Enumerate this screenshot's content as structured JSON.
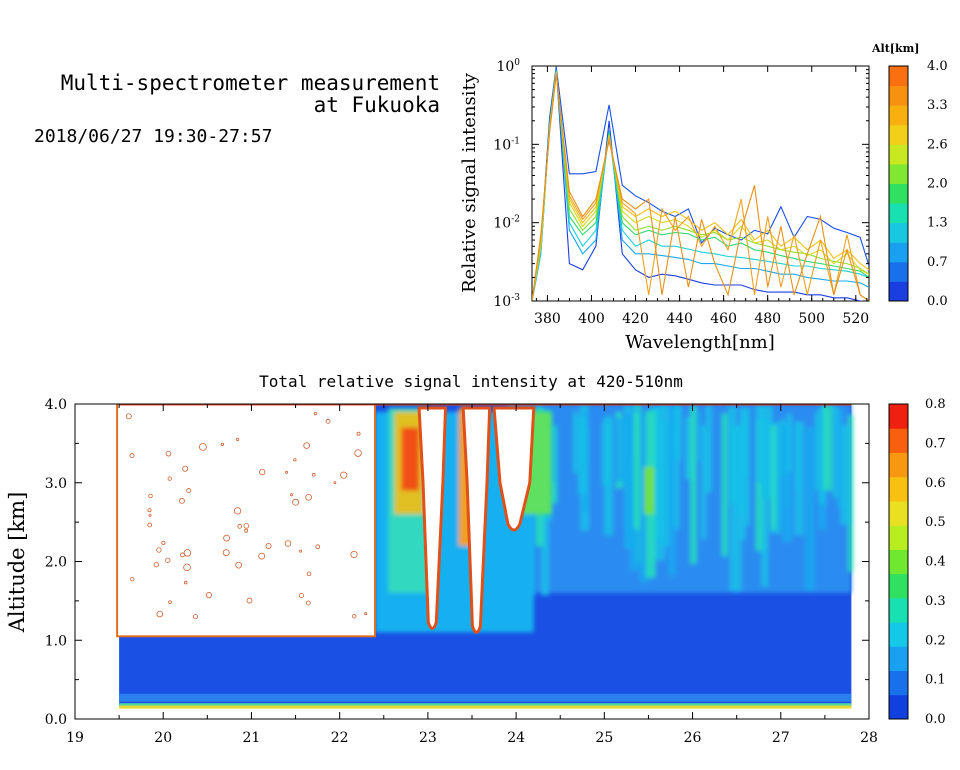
{
  "header": {
    "title_line1": "Multi-spectrometer measurement",
    "title_line2": "at Fukuoka",
    "datetime": "2018/06/27 19:30-27:57"
  },
  "colors": {
    "colorbar": [
      "#1040e0",
      "#1870ea",
      "#1aa0f0",
      "#14c8e8",
      "#18e0b0",
      "#30e060",
      "#70e830",
      "#b8ee20",
      "#e8e020",
      "#f8c010",
      "#f89810",
      "#f86010",
      "#f02010"
    ]
  },
  "chart_data": [
    {
      "type": "line",
      "xlabel": "Wavelength[nm]",
      "ylabel": "Relative signal intensity",
      "xlim": [
        373,
        526
      ],
      "ylim_log10": [
        -3,
        0
      ],
      "yscale": "log",
      "x_ticks": [
        380,
        400,
        420,
        440,
        460,
        480,
        500,
        520
      ],
      "y_ticks": [
        {
          "base": "10",
          "exp": "-3"
        },
        {
          "base": "10",
          "exp": "-2"
        },
        {
          "base": "10",
          "exp": "-1"
        },
        {
          "base": "10",
          "exp": "0"
        }
      ],
      "colorbar": {
        "label": "Alt[km]",
        "ticks": [
          "0.0",
          "0.7",
          "1.3",
          "2.0",
          "2.6",
          "3.3",
          "4.0"
        ]
      },
      "series": [
        {
          "alt": 0.15,
          "color": "#1a3ee0",
          "x": [
            373,
            377,
            381,
            384,
            390,
            396,
            402,
            408,
            414,
            420,
            426,
            432,
            438,
            444,
            450,
            456,
            462,
            468,
            474,
            480,
            486,
            492,
            498,
            504,
            510,
            516,
            522,
            526
          ],
          "y": [
            0.001,
            0.004,
            0.2,
            0.95,
            0.003,
            0.0025,
            0.005,
            0.2,
            0.004,
            0.0025,
            0.002,
            0.0022,
            0.0021,
            0.0019,
            0.0017,
            0.0016,
            0.0016,
            0.0016,
            0.0014,
            0.0013,
            0.0013,
            0.0013,
            0.0012,
            0.0012,
            0.0011,
            0.0011,
            0.001,
            0.001
          ]
        },
        {
          "alt": 0.25,
          "color": "#1850e6",
          "x": [
            373,
            377,
            381,
            384,
            390,
            396,
            402,
            408,
            414,
            420,
            426,
            432,
            438,
            444,
            450,
            456,
            462,
            468,
            474,
            480,
            486,
            492,
            498,
            504,
            510,
            516,
            522,
            526
          ],
          "y": [
            0.001,
            0.005,
            0.22,
            0.98,
            0.042,
            0.042,
            0.045,
            0.32,
            0.03,
            0.022,
            0.018,
            0.014,
            0.012,
            0.015,
            0.0055,
            0.0085,
            0.007,
            0.006,
            0.008,
            0.0072,
            0.016,
            0.0065,
            0.012,
            0.011,
            0.0085,
            0.0075,
            0.0065,
            0.0028
          ]
        },
        {
          "alt": 0.9,
          "color": "#18a8f0",
          "x": [
            373,
            377,
            381,
            384,
            390,
            396,
            402,
            408,
            414,
            420,
            426,
            432,
            438,
            444,
            450,
            456,
            462,
            468,
            474,
            480,
            486,
            492,
            498,
            504,
            510,
            516,
            522,
            526
          ],
          "y": [
            0.001,
            0.004,
            0.18,
            0.9,
            0.008,
            0.004,
            0.006,
            0.15,
            0.006,
            0.004,
            0.004,
            0.0038,
            0.0036,
            0.0034,
            0.003,
            0.003,
            0.0028,
            0.0026,
            0.0026,
            0.0024,
            0.0022,
            0.0022,
            0.002,
            0.0019,
            0.0018,
            0.0018,
            0.0017,
            0.0015
          ]
        },
        {
          "alt": 1.3,
          "color": "#18d0d8",
          "x": [
            373,
            377,
            381,
            384,
            390,
            396,
            402,
            408,
            414,
            420,
            426,
            432,
            438,
            444,
            450,
            456,
            462,
            468,
            474,
            480,
            486,
            492,
            498,
            504,
            510,
            516,
            522,
            526
          ],
          "y": [
            0.001,
            0.004,
            0.17,
            0.88,
            0.01,
            0.005,
            0.008,
            0.14,
            0.008,
            0.005,
            0.006,
            0.005,
            0.005,
            0.0046,
            0.0042,
            0.004,
            0.0037,
            0.0036,
            0.0034,
            0.0032,
            0.003,
            0.0028,
            0.0028,
            0.0026,
            0.0025,
            0.0024,
            0.0022,
            0.002
          ]
        },
        {
          "alt": 1.8,
          "color": "#30d870",
          "x": [
            373,
            377,
            381,
            384,
            390,
            396,
            402,
            408,
            414,
            420,
            426,
            432,
            438,
            444,
            450,
            456,
            462,
            468,
            474,
            480,
            486,
            492,
            498,
            504,
            510,
            516,
            522,
            526
          ],
          "y": [
            0.001,
            0.005,
            0.17,
            0.86,
            0.012,
            0.007,
            0.01,
            0.14,
            0.01,
            0.007,
            0.008,
            0.007,
            0.0075,
            0.0072,
            0.006,
            0.0065,
            0.005,
            0.0055,
            0.0045,
            0.0042,
            0.0038,
            0.0035,
            0.0032,
            0.003,
            0.0028,
            0.0026,
            0.0024,
            0.002
          ]
        },
        {
          "alt": 2.3,
          "color": "#90e030",
          "x": [
            373,
            377,
            381,
            384,
            390,
            396,
            402,
            408,
            414,
            420,
            426,
            432,
            438,
            444,
            450,
            456,
            462,
            468,
            474,
            480,
            486,
            492,
            498,
            504,
            510,
            516,
            522,
            526
          ],
          "y": [
            0.001,
            0.005,
            0.16,
            0.85,
            0.015,
            0.008,
            0.012,
            0.13,
            0.012,
            0.008,
            0.009,
            0.008,
            0.009,
            0.008,
            0.007,
            0.0075,
            0.006,
            0.0065,
            0.0055,
            0.005,
            0.0045,
            0.0042,
            0.004,
            0.0035,
            0.0032,
            0.003,
            0.0026,
            0.0022
          ]
        },
        {
          "alt": 2.8,
          "color": "#d8d820",
          "x": [
            373,
            377,
            381,
            384,
            390,
            396,
            402,
            408,
            414,
            420,
            426,
            432,
            438,
            444,
            450,
            456,
            462,
            468,
            474,
            480,
            486,
            492,
            498,
            504,
            510,
            516,
            522,
            526
          ],
          "y": [
            0.001,
            0.005,
            0.16,
            0.84,
            0.018,
            0.009,
            0.014,
            0.13,
            0.014,
            0.01,
            0.012,
            0.01,
            0.011,
            0.009,
            0.0065,
            0.008,
            0.006,
            0.009,
            0.0055,
            0.006,
            0.0045,
            0.005,
            0.0038,
            0.0045,
            0.003,
            0.004,
            0.0025,
            0.0022
          ]
        },
        {
          "alt": 3.1,
          "color": "#f0c010",
          "x": [
            373,
            377,
            381,
            384,
            390,
            396,
            402,
            408,
            414,
            420,
            426,
            432,
            438,
            444,
            450,
            456,
            462,
            468,
            474,
            480,
            486,
            492,
            498,
            504,
            510,
            516,
            522,
            526
          ],
          "y": [
            0.001,
            0.006,
            0.15,
            0.82,
            0.02,
            0.01,
            0.016,
            0.12,
            0.016,
            0.012,
            0.015,
            0.012,
            0.014,
            0.011,
            0.008,
            0.01,
            0.007,
            0.011,
            0.006,
            0.008,
            0.005,
            0.0065,
            0.0045,
            0.006,
            0.0035,
            0.0045,
            0.003,
            0.0025
          ]
        },
        {
          "alt": 3.6,
          "color": "#f0a020",
          "x": [
            373,
            377,
            381,
            384,
            390,
            396,
            402,
            408,
            414,
            420,
            426,
            432,
            438,
            444,
            450,
            456,
            462,
            468,
            474,
            480,
            486,
            492,
            498,
            504,
            510,
            516,
            522,
            526
          ],
          "y": [
            0.001,
            0.006,
            0.15,
            0.8,
            0.022,
            0.011,
            0.018,
            0.12,
            0.018,
            0.013,
            0.0012,
            0.015,
            0.008,
            0.012,
            0.005,
            0.009,
            0.0045,
            0.02,
            0.0012,
            0.012,
            0.0015,
            0.007,
            0.0012,
            0.006,
            0.0012,
            0.007,
            0.0012,
            0.001
          ]
        },
        {
          "alt": 3.9,
          "color": "#e89018",
          "x": [
            373,
            377,
            381,
            384,
            390,
            396,
            402,
            408,
            414,
            420,
            426,
            432,
            438,
            444,
            450,
            456,
            462,
            468,
            474,
            480,
            486,
            492,
            498,
            504,
            510,
            516,
            522,
            526
          ],
          "y": [
            0.001,
            0.007,
            0.14,
            0.78,
            0.025,
            0.012,
            0.02,
            0.11,
            0.02,
            0.015,
            0.02,
            0.0012,
            0.012,
            0.0015,
            0.011,
            0.003,
            0.0012,
            0.008,
            0.03,
            0.0015,
            0.009,
            0.0012,
            0.004,
            0.012,
            0.0012,
            0.0045,
            0.0012,
            0.001
          ]
        }
      ]
    },
    {
      "type": "heatmap",
      "title": "Total relative signal intensity at 420-510nm",
      "ylabel": "Altitude [km]",
      "xlim": [
        19,
        28
      ],
      "ylim": [
        0,
        4
      ],
      "x_ticks": [
        "19",
        "20",
        "21",
        "22",
        "23",
        "24",
        "25",
        "26",
        "27",
        "28"
      ],
      "y_ticks": [
        "0.0",
        "1.0",
        "2.0",
        "3.0",
        "4.0"
      ],
      "colorbar": {
        "range": [
          0,
          0.8
        ],
        "ticks": [
          "0.0",
          "0.1",
          "0.2",
          "0.3",
          "0.4",
          "0.5",
          "0.6",
          "0.7",
          "0.8"
        ]
      },
      "data_range_x": [
        19.5,
        27.8
      ],
      "data_range_y": [
        0.15,
        4.0
      ],
      "typical_value_low_altitude": 0.05,
      "typical_value_upper_after_24": 0.15,
      "no_signal_region": {
        "x": [
          19.5,
          22.4
        ],
        "y": [
          1.05,
          4.0
        ]
      },
      "no_signal_notches": [
        {
          "x": [
            22.9,
            23.2
          ],
          "y_min": 1.15
        },
        {
          "x": [
            23.4,
            23.7
          ],
          "y_min": 1.1
        },
        {
          "x": [
            23.75,
            24.2
          ],
          "y_min": 2.4
        }
      ]
    }
  ]
}
